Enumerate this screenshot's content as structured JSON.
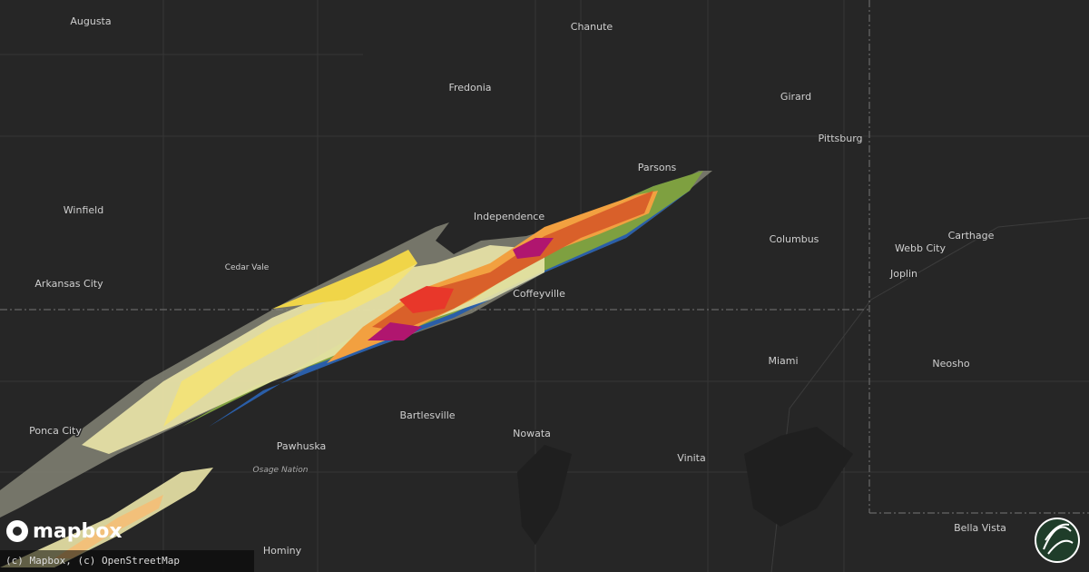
{
  "places": [
    "Augusta",
    "Chanute",
    "Fredonia",
    "Girard",
    "Pittsburg",
    "Parsons",
    "Winfield",
    "Independence",
    "Columbus",
    "Webb City",
    "Carthage",
    "Cedar Vale",
    "Joplin",
    "Arkansas City",
    "Coffeyville",
    "Miami",
    "Neosho",
    "Bartlesville",
    "Nowata",
    "Ponca City",
    "Pawhuska",
    "Vinita",
    "Osage Nation",
    "Hominy",
    "Bella Vista"
  ],
  "logo": "mapbox",
  "attribution": "(c) Mapbox, (c) OpenStreetMap"
}
